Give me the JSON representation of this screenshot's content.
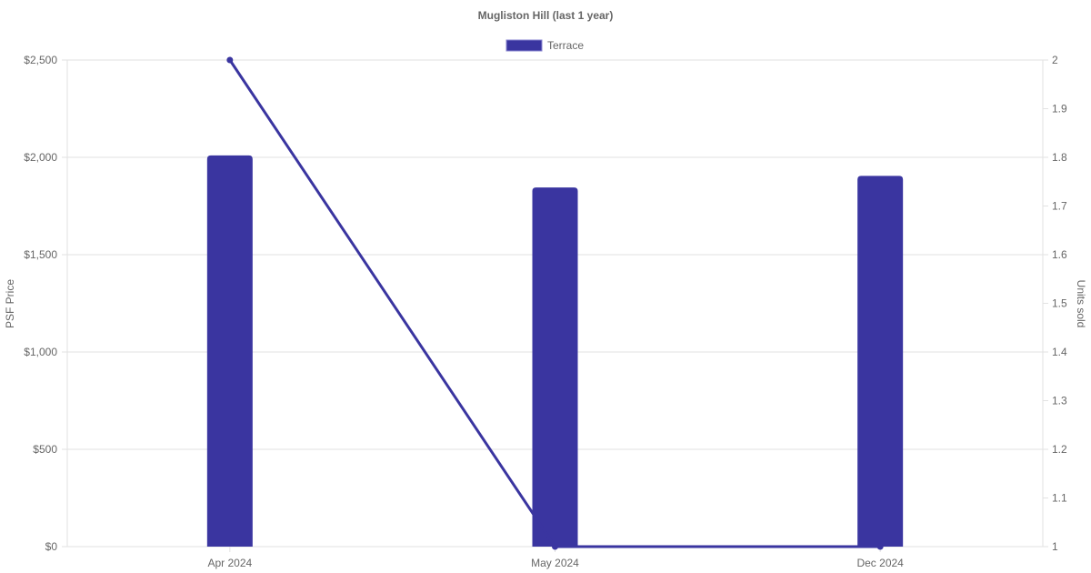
{
  "chart_data": {
    "type": "bar",
    "title": "Mugliston Hill (last 1 year)",
    "categories": [
      "Apr 2024",
      "May 2024",
      "Dec 2024"
    ],
    "series": [
      {
        "name": "Terrace",
        "type": "bar",
        "axis": "left",
        "values": [
          2010,
          1845,
          1905
        ],
        "color": "#3a35a0"
      },
      {
        "type": "line",
        "axis": "right",
        "values": [
          2,
          1,
          1
        ],
        "color": "#3a35a0"
      }
    ],
    "ylabel": "PSF Price",
    "y2label": "Units sold",
    "ylim": [
      0,
      2500
    ],
    "y2lim": [
      1,
      2
    ],
    "yticks": [
      "$0",
      "$500",
      "$1,000",
      "$1,500",
      "$2,000",
      "$2,500"
    ],
    "y2ticks": [
      "1",
      "1.1",
      "1.2",
      "1.3",
      "1.4",
      "1.5",
      "1.6",
      "1.7",
      "1.8",
      "1.9",
      "2"
    ],
    "grid": true,
    "legend": "top"
  }
}
